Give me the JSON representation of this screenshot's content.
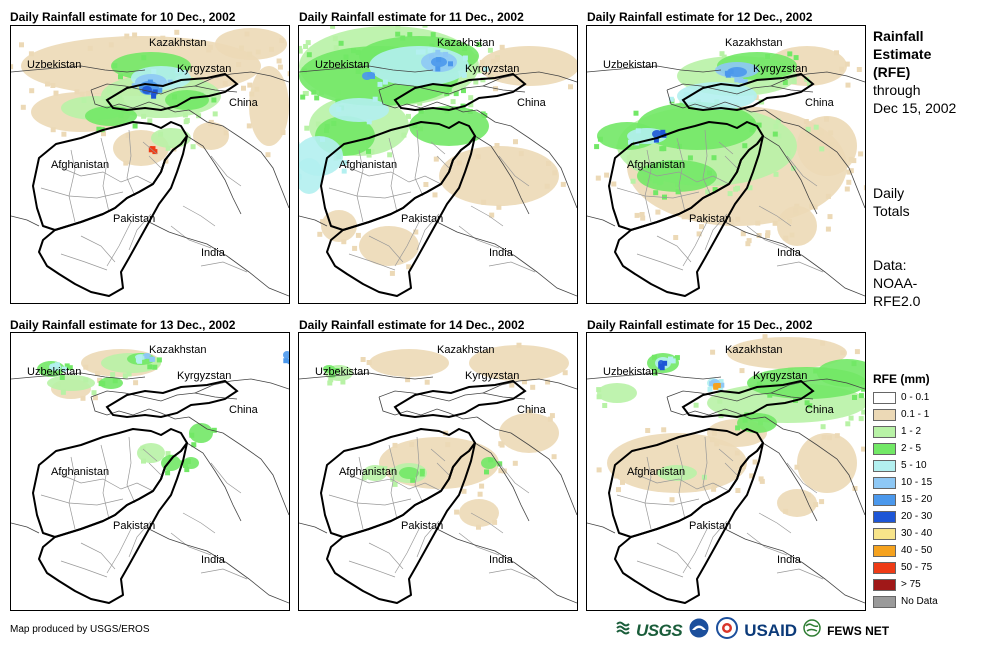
{
  "panels": [
    {
      "title": "Daily Rainfall estimate for 10 Dec., 2002"
    },
    {
      "title": "Daily Rainfall estimate for 11 Dec., 2002"
    },
    {
      "title": "Daily Rainfall estimate for 12 Dec., 2002"
    },
    {
      "title": "Daily Rainfall estimate for 13 Dec., 2002"
    },
    {
      "title": "Daily Rainfall estimate for 14 Dec., 2002"
    },
    {
      "title": "Daily Rainfall estimate for 15 Dec., 2002"
    }
  ],
  "map_labels": {
    "kazakhstan": "Kazakhstan",
    "uzbekistan": "Uzbekistan",
    "kyrgyzstan": "Kyrgyzstan",
    "china": "China",
    "afghanistan": "Afghanistan",
    "pakistan": "Pakistan",
    "india": "India"
  },
  "side": {
    "title_line1": "Rainfall",
    "title_line2": "Estimate",
    "title_line3": "(RFE)",
    "through": "through",
    "date": "Dec 15, 2002",
    "daily": "Daily",
    "totals": "Totals",
    "data_label": "Data:",
    "data_source1": "NOAA-",
    "data_source2": "RFE2.0"
  },
  "legend": {
    "title": "RFE (mm)",
    "items": [
      {
        "label": "0 - 0.1",
        "color": "#ffffff"
      },
      {
        "label": "0.1 - 1",
        "color": "#ecd9b6"
      },
      {
        "label": "1 - 2",
        "color": "#b8f2a6"
      },
      {
        "label": "2 - 5",
        "color": "#72e866"
      },
      {
        "label": "5 - 10",
        "color": "#b3f0f0"
      },
      {
        "label": "10 - 15",
        "color": "#8ec8f5"
      },
      {
        "label": "15 - 20",
        "color": "#4b98ec"
      },
      {
        "label": "20 - 30",
        "color": "#1e56d6"
      },
      {
        "label": "30 - 40",
        "color": "#f7e48a"
      },
      {
        "label": "40 - 50",
        "color": "#f5a21e"
      },
      {
        "label": "50 - 75",
        "color": "#ee3b16"
      },
      {
        "label": "> 75",
        "color": "#a01818"
      },
      {
        "label": "No Data",
        "color": "#9a9a9a"
      }
    ]
  },
  "footer": {
    "credit": "Map produced by USGS/EROS",
    "logo_usgs": "USGS",
    "logo_usaid": "USAID",
    "logo_fews": "FEWS NET"
  }
}
